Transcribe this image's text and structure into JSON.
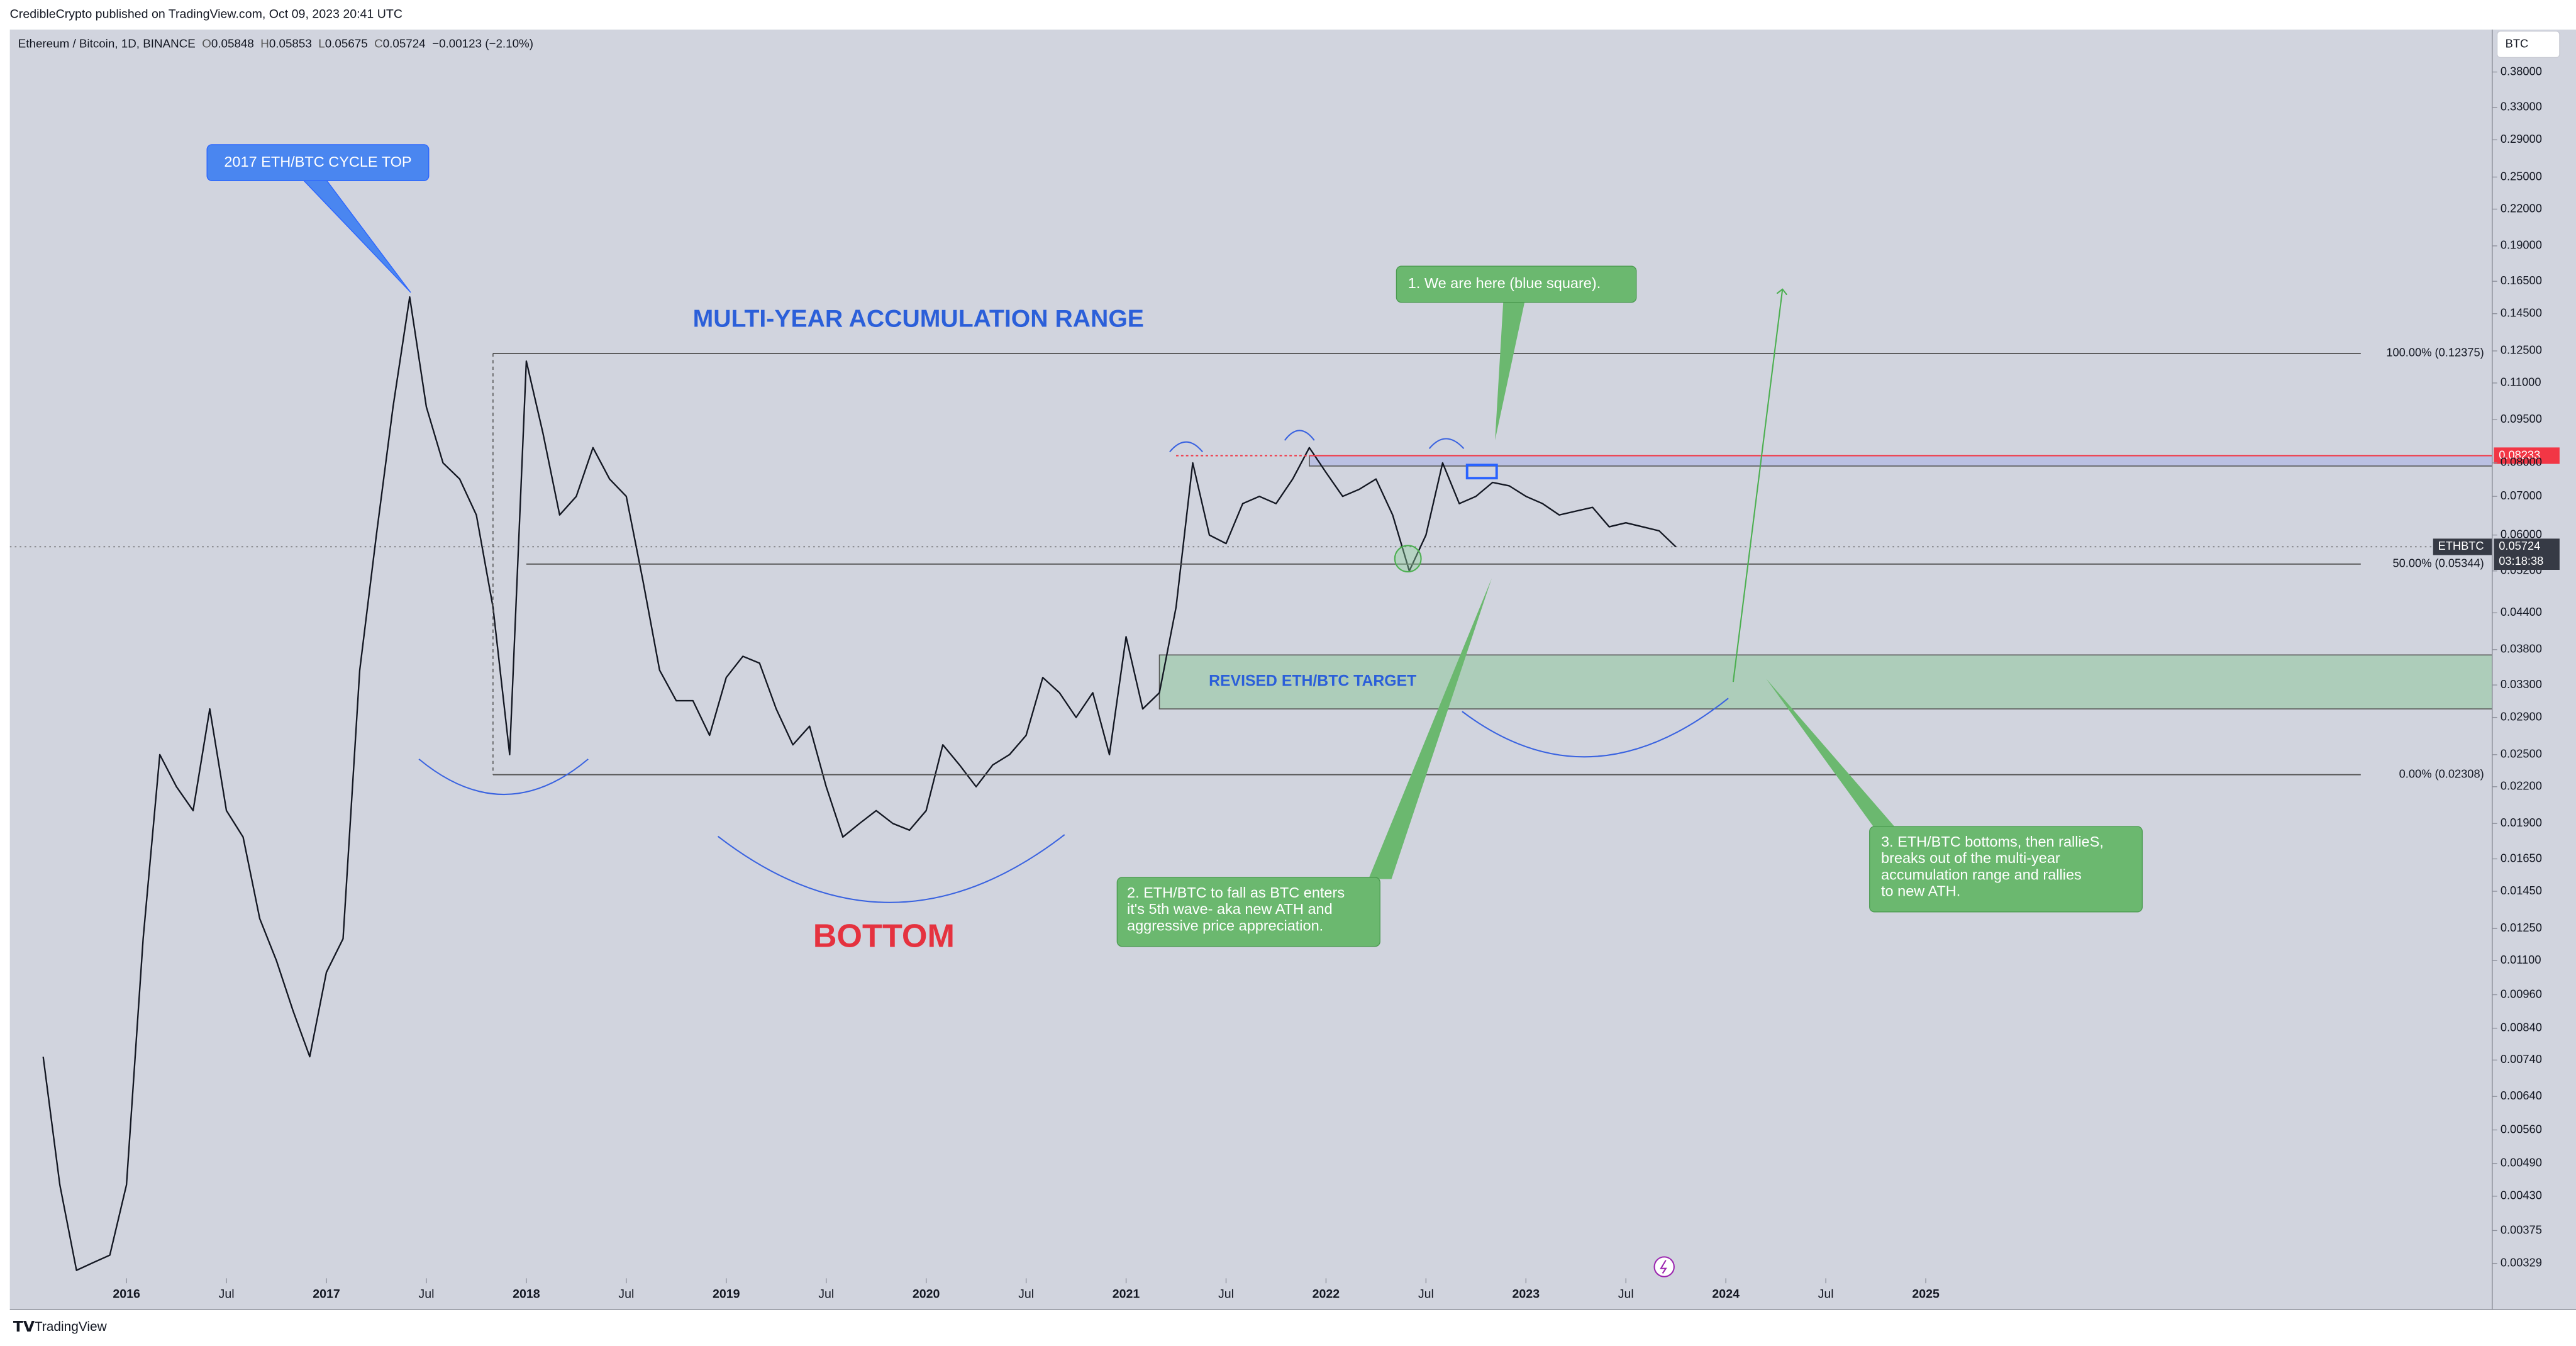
{
  "header": {
    "publisher": "CredibleCrypto published on TradingView.com, Oct 09, 2023 20:41 UTC",
    "footer": "TradingView"
  },
  "chart_data": {
    "type": "line",
    "title": "Ethereum / Bitcoin, 1D, BINANCE",
    "ohlc": [
      {
        "label": "O",
        "value": 0.05848
      },
      {
        "label": "H",
        "value": 0.05853
      },
      {
        "label": "L",
        "value": 0.05675
      },
      {
        "label": "C",
        "value": 0.05724
      }
    ],
    "change": "−0.00123 (−2.10%)",
    "currency": "BTC",
    "symbol": "ETHBTC",
    "countdown": "03:18:38",
    "y_scale": "log",
    "x": [
      "2015-08",
      "2015-09",
      "2015-10",
      "2015-11",
      "2015-12",
      "2016-01",
      "2016-02",
      "2016-03",
      "2016-04",
      "2016-05",
      "2016-06",
      "2016-07",
      "2016-08",
      "2016-09",
      "2016-10",
      "2016-11",
      "2016-12",
      "2017-01",
      "2017-02",
      "2017-03",
      "2017-04",
      "2017-05",
      "2017-06",
      "2017-07",
      "2017-08",
      "2017-09",
      "2017-10",
      "2017-11",
      "2017-12",
      "2018-01",
      "2018-02",
      "2018-03",
      "2018-04",
      "2018-05",
      "2018-06",
      "2018-07",
      "2018-08",
      "2018-09",
      "2018-10",
      "2018-11",
      "2018-12",
      "2019-01",
      "2019-02",
      "2019-03",
      "2019-04",
      "2019-05",
      "2019-06",
      "2019-07",
      "2019-08",
      "2019-09",
      "2019-10",
      "2019-11",
      "2019-12",
      "2020-01",
      "2020-02",
      "2020-03",
      "2020-04",
      "2020-05",
      "2020-06",
      "2020-07",
      "2020-08",
      "2020-09",
      "2020-10",
      "2020-11",
      "2020-12",
      "2021-01",
      "2021-02",
      "2021-03",
      "2021-04",
      "2021-05",
      "2021-06",
      "2021-07",
      "2021-08",
      "2021-09",
      "2021-10",
      "2021-11",
      "2021-12",
      "2022-01",
      "2022-02",
      "2022-03",
      "2022-04",
      "2022-05",
      "2022-06",
      "2022-07",
      "2022-08",
      "2022-09",
      "2022-10",
      "2022-11",
      "2022-12",
      "2023-01",
      "2023-02",
      "2023-03",
      "2023-04",
      "2023-05",
      "2023-06",
      "2023-07",
      "2023-08",
      "2023-09",
      "2023-10"
    ],
    "series": [
      {
        "color": "#131722",
        "values": [
          0.0075,
          0.0045,
          0.0032,
          0.0033,
          0.0034,
          0.0045,
          0.012,
          0.025,
          0.022,
          0.02,
          0.03,
          0.02,
          0.018,
          0.013,
          0.011,
          0.009,
          0.0075,
          0.0105,
          0.012,
          0.035,
          0.06,
          0.1,
          0.155,
          0.1,
          0.08,
          0.075,
          0.065,
          0.045,
          0.025,
          0.12,
          0.09,
          0.065,
          0.07,
          0.085,
          0.075,
          0.07,
          0.05,
          0.035,
          0.031,
          0.031,
          0.027,
          0.034,
          0.037,
          0.036,
          0.03,
          0.026,
          0.028,
          0.022,
          0.018,
          0.019,
          0.02,
          0.019,
          0.0185,
          0.02,
          0.026,
          0.024,
          0.022,
          0.024,
          0.025,
          0.027,
          0.034,
          0.032,
          0.029,
          0.032,
          0.025,
          0.04,
          0.03,
          0.032,
          0.045,
          0.08,
          0.06,
          0.058,
          0.068,
          0.07,
          0.068,
          0.075,
          0.085,
          0.077,
          0.07,
          0.072,
          0.075,
          0.065,
          0.052,
          0.06,
          0.08,
          0.068,
          0.07,
          0.074,
          0.073,
          0.07,
          0.068,
          0.065,
          0.066,
          0.067,
          0.062,
          0.063,
          0.062,
          0.061,
          0.05724
        ]
      }
    ],
    "xlim": [
      "2015-06",
      "2027-11"
    ],
    "xticks": [
      {
        "value": "2016-01",
        "label": "2016"
      },
      {
        "value": "2016-07",
        "label": "Jul"
      },
      {
        "value": "2017-01",
        "label": "2017"
      },
      {
        "value": "2017-07",
        "label": "Jul"
      },
      {
        "value": "2018-01",
        "label": "2018"
      },
      {
        "value": "2018-07",
        "label": "Jul"
      },
      {
        "value": "2019-01",
        "label": "2019"
      },
      {
        "value": "2019-07",
        "label": "Jul"
      },
      {
        "value": "2020-01",
        "label": "2020"
      },
      {
        "value": "2020-07",
        "label": "Jul"
      },
      {
        "value": "2021-01",
        "label": "2021"
      },
      {
        "value": "2021-07",
        "label": "Jul"
      },
      {
        "value": "2022-01",
        "label": "2022"
      },
      {
        "value": "2022-07",
        "label": "Jul"
      },
      {
        "value": "2023-01",
        "label": "2023"
      },
      {
        "value": "2023-07",
        "label": "Jul"
      },
      {
        "value": "2024-01",
        "label": "2024"
      },
      {
        "value": "2024-07",
        "label": "Jul"
      },
      {
        "value": "2025-01",
        "label": "2025"
      }
    ],
    "ylim": [
      0.0031,
      0.45
    ],
    "yticks": [
      {
        "value": 0.38,
        "label": "0.38000"
      },
      {
        "value": 0.33,
        "label": "0.33000"
      },
      {
        "value": 0.29,
        "label": "0.29000"
      },
      {
        "value": 0.25,
        "label": "0.25000"
      },
      {
        "value": 0.22,
        "label": "0.22000"
      },
      {
        "value": 0.19,
        "label": "0.19000"
      },
      {
        "value": 0.165,
        "label": "0.16500"
      },
      {
        "value": 0.145,
        "label": "0.14500"
      },
      {
        "value": 0.125,
        "label": "0.12500"
      },
      {
        "value": 0.11,
        "label": "0.11000"
      },
      {
        "value": 0.095,
        "label": "0.09500"
      },
      {
        "value": 0.08,
        "label": "0.08000"
      },
      {
        "value": 0.07,
        "label": "0.07000"
      },
      {
        "value": 0.06,
        "label": "0.06000"
      },
      {
        "value": 0.052,
        "label": "0.05200"
      },
      {
        "value": 0.044,
        "label": "0.04400"
      },
      {
        "value": 0.038,
        "label": "0.03800"
      },
      {
        "value": 0.033,
        "label": "0.03300"
      },
      {
        "value": 0.029,
        "label": "0.02900"
      },
      {
        "value": 0.025,
        "label": "0.02500"
      },
      {
        "value": 0.022,
        "label": "0.02200"
      },
      {
        "value": 0.019,
        "label": "0.01900"
      },
      {
        "value": 0.0165,
        "label": "0.01650"
      },
      {
        "value": 0.0145,
        "label": "0.01450"
      },
      {
        "value": 0.0125,
        "label": "0.01250"
      },
      {
        "value": 0.011,
        "label": "0.01100"
      },
      {
        "value": 0.0096,
        "label": "0.00960"
      },
      {
        "value": 0.0084,
        "label": "0.00840"
      },
      {
        "value": 0.0074,
        "label": "0.00740"
      },
      {
        "value": 0.0064,
        "label": "0.00640"
      },
      {
        "value": 0.0056,
        "label": "0.00560"
      },
      {
        "value": 0.0049,
        "label": "0.00490"
      },
      {
        "value": 0.0043,
        "label": "0.00430"
      },
      {
        "value": 0.00375,
        "label": "0.00375"
      },
      {
        "value": 0.00329,
        "label": "0.00329"
      }
    ],
    "levels": [
      {
        "label": "100.00% (0.12375)",
        "value": 0.12375,
        "start": "2017-11"
      },
      {
        "label": "50.00% (0.05344)",
        "value": 0.05344,
        "start": "2018-01"
      },
      {
        "label": "0.00% (0.02308)",
        "value": 0.02308,
        "start": "2017-11"
      }
    ],
    "resistance": {
      "value": 0.08233,
      "start": "2021-04",
      "color": "#f23645"
    },
    "zones": [
      {
        "label": "REVISED ETH/BTC TARGET",
        "low": 0.03,
        "high": 0.0372,
        "start": "2021-03",
        "color": "#8fc79c"
      },
      {
        "low": 0.079,
        "high": 0.08233,
        "start": "2021-12",
        "color": "#a7aee6"
      }
    ],
    "annotations": [
      {
        "text": "2017 ETH/BTC CYCLE TOP"
      },
      {
        "text": "MULTI-YEAR ACCUMULATION RANGE"
      },
      {
        "text": "BOTTOM"
      },
      {
        "lines": [
          "1. We are here (blue square)."
        ]
      },
      {
        "lines": [
          "2. ETH/BTC to fall as BTC enters",
          "it's 5th wave- aka new ATH and",
          "aggressive price appreciation."
        ]
      },
      {
        "lines": [
          "3. ETH/BTC bottoms, then rallieS,",
          "breaks out of the multi-year",
          "accumulation range and rallies",
          "to new ATH."
        ]
      }
    ]
  }
}
